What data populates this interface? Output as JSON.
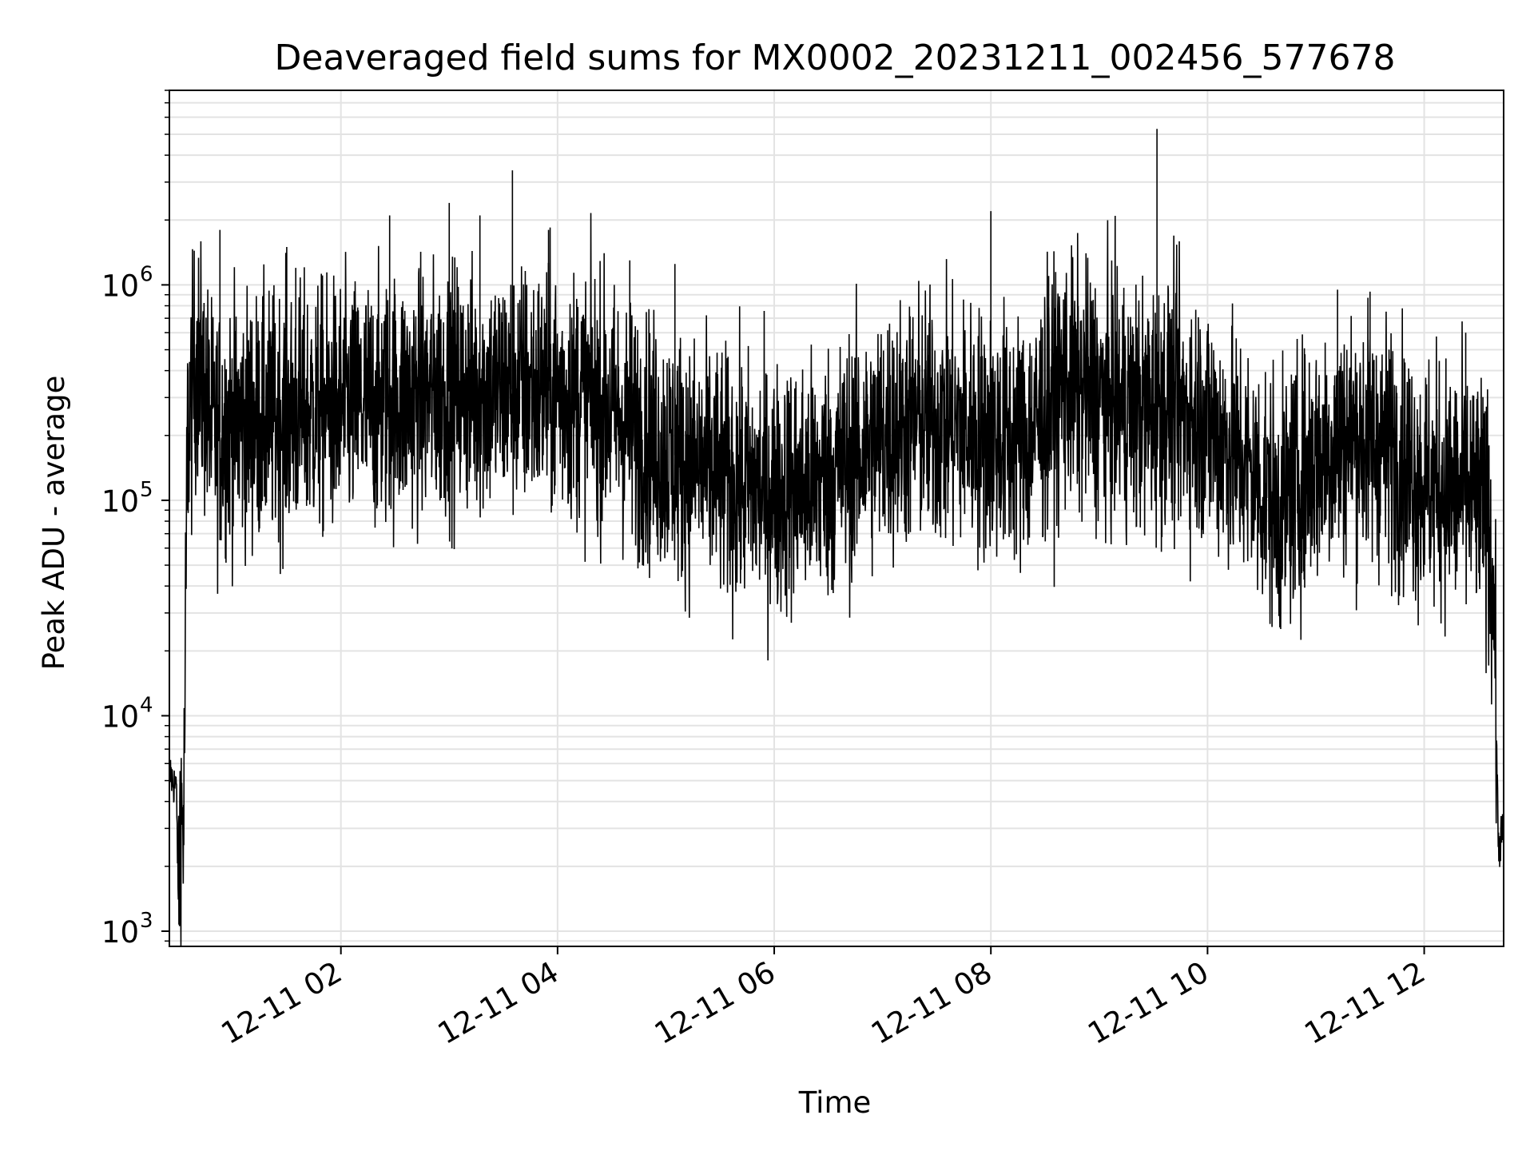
{
  "chart_data": {
    "type": "line",
    "title": "Deaveraged field sums for MX0002_20231211_002456_577678",
    "xlabel": "Time",
    "ylabel": "Peak ADU - average",
    "yscale": "log",
    "ylim": [
      850,
      8000000
    ],
    "xlim": [
      "2023-12-11 00:25",
      "2023-12-11 12:44"
    ],
    "grid": true,
    "color": "#000000",
    "x_ticks": [
      {
        "value": "2023-12-11 02:00",
        "label": "12-11 02"
      },
      {
        "value": "2023-12-11 04:00",
        "label": "12-11 04"
      },
      {
        "value": "2023-12-11 06:00",
        "label": "12-11 06"
      },
      {
        "value": "2023-12-11 08:00",
        "label": "12-11 08"
      },
      {
        "value": "2023-12-11 10:00",
        "label": "12-11 10"
      },
      {
        "value": "2023-12-11 12:00",
        "label": "12-11 12"
      }
    ],
    "y_ticks": [
      {
        "value": 1000,
        "base": "10",
        "exp": "3"
      },
      {
        "value": 10000,
        "base": "10",
        "exp": "4"
      },
      {
        "value": 100000,
        "base": "10",
        "exp": "5"
      },
      {
        "value": 1000000,
        "base": "10",
        "exp": "6"
      }
    ],
    "series": [
      {
        "x": [
          "2023-12-11 00:25",
          "2023-12-11 00:29",
          "2023-12-11 00:30",
          "2023-12-11 00:31",
          "2023-12-11 00:33",
          "2023-12-11 00:35",
          "2023-12-11 00:40",
          "2023-12-11 00:45",
          "2023-12-11 00:48",
          "2023-12-11 00:52",
          "2023-12-11 00:55",
          "2023-12-11 01:00",
          "2023-12-11 01:20",
          "2023-12-11 01:40",
          "2023-12-11 02:00",
          "2023-12-11 02:20",
          "2023-12-11 02:40",
          "2023-12-11 03:00",
          "2023-12-11 03:20",
          "2023-12-11 03:40",
          "2023-12-11 04:00",
          "2023-12-11 04:20",
          "2023-12-11 04:40",
          "2023-12-11 05:00",
          "2023-12-11 05:20",
          "2023-12-11 05:40",
          "2023-12-11 06:00",
          "2023-12-11 06:20",
          "2023-12-11 06:40",
          "2023-12-11 07:00",
          "2023-12-11 07:20",
          "2023-12-11 07:40",
          "2023-12-11 08:00",
          "2023-12-11 08:20",
          "2023-12-11 08:40",
          "2023-12-11 09:00",
          "2023-12-11 09:20",
          "2023-12-11 09:40",
          "2023-12-11 10:00",
          "2023-12-11 10:20",
          "2023-12-11 10:40",
          "2023-12-11 11:00",
          "2023-12-11 11:20",
          "2023-12-11 11:40",
          "2023-12-11 12:00",
          "2023-12-11 12:20",
          "2023-12-11 12:35",
          "2023-12-11 12:39",
          "2023-12-11 12:41",
          "2023-12-11 12:44"
        ],
        "y": [
          5500,
          4500,
          1300,
          3500,
          3200,
          200000,
          450000,
          300000,
          220000,
          200000,
          220000,
          230000,
          240000,
          260000,
          270000,
          280000,
          300000,
          320000,
          320000,
          330000,
          320000,
          300000,
          220000,
          170000,
          140000,
          120000,
          110000,
          120000,
          150000,
          200000,
          240000,
          220000,
          200000,
          190000,
          350000,
          300000,
          260000,
          280000,
          230000,
          150000,
          90000,
          160000,
          200000,
          180000,
          120000,
          110000,
          90000,
          30000,
          2500,
          3000
        ]
      }
    ],
    "spikes": [
      {
        "x": "2023-12-11 00:53",
        "y": 1800000
      },
      {
        "x": "2023-12-11 01:30",
        "y": 1500000
      },
      {
        "x": "2023-12-11 02:27",
        "y": 2100000
      },
      {
        "x": "2023-12-11 03:00",
        "y": 2400000
      },
      {
        "x": "2023-12-11 03:17",
        "y": 2100000
      },
      {
        "x": "2023-12-11 03:35",
        "y": 3400000
      },
      {
        "x": "2023-12-11 03:55",
        "y": 1800000
      },
      {
        "x": "2023-12-11 08:00",
        "y": 2200000
      },
      {
        "x": "2023-12-11 09:32",
        "y": 5300000
      },
      {
        "x": "2023-12-11 12:23",
        "y": 600000
      },
      {
        "x": "2023-12-11 01:35",
        "y": 1200000
      },
      {
        "x": "2023-12-11 04:40",
        "y": 1300000
      },
      {
        "x": "2023-12-11 05:05",
        "y": 1250000
      },
      {
        "x": "2023-12-11 08:32",
        "y": 1100000
      },
      {
        "x": "2023-12-11 11:12",
        "y": 950000
      },
      {
        "x": "2023-12-11 11:30",
        "y": 930000
      }
    ]
  }
}
